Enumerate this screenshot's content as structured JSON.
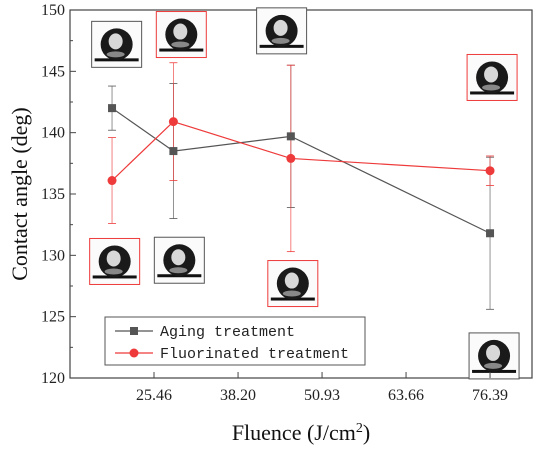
{
  "chart_data": {
    "type": "line",
    "xlabel": "Fluence (J/cm",
    "xlabel_sup": "2",
    "xlabel_end": ")",
    "ylabel": "Contact angle (deg)",
    "xlim": [
      12.73,
      82.75
    ],
    "ylim": [
      120,
      150
    ],
    "xticks": [
      25.46,
      38.2,
      50.93,
      63.66,
      76.39
    ],
    "xtick_labels": [
      "25.46",
      "38.20",
      "50.93",
      "63.66",
      "76.39"
    ],
    "yticks": [
      120,
      125,
      130,
      135,
      140,
      145,
      150
    ],
    "ytick_labels": [
      "120",
      "125",
      "130",
      "135",
      "140",
      "145",
      "150"
    ],
    "legend_position": "bottom-left",
    "series": [
      {
        "name": "Aging treatment",
        "color": "#555555",
        "marker": "square",
        "x": [
          19.1,
          28.4,
          46.2,
          76.39
        ],
        "y": [
          142.0,
          138.5,
          139.7,
          131.8
        ],
        "err": [
          1.8,
          5.5,
          5.8,
          6.2
        ]
      },
      {
        "name": "Fluorinated treatment",
        "color": "#ee3a3a",
        "marker": "circle",
        "x": [
          19.1,
          28.4,
          46.2,
          76.39
        ],
        "y": [
          136.1,
          140.9,
          137.9,
          136.9
        ],
        "err": [
          3.5,
          4.8,
          7.6,
          1.2
        ]
      }
    ],
    "droplets": [
      {
        "x": 19.8,
        "y": 147.2,
        "frame": "#555555"
      },
      {
        "x": 29.6,
        "y": 148.0,
        "frame": "#ee3a3a"
      },
      {
        "x": 44.8,
        "y": 148.3,
        "frame": "#555555"
      },
      {
        "x": 76.7,
        "y": 144.5,
        "frame": "#ee3a3a"
      },
      {
        "x": 19.5,
        "y": 129.5,
        "frame": "#ee3a3a"
      },
      {
        "x": 29.3,
        "y": 129.6,
        "frame": "#555555"
      },
      {
        "x": 46.5,
        "y": 127.7,
        "frame": "#ee3a3a"
      },
      {
        "x": 77.0,
        "y": 121.8,
        "frame": "#555555"
      }
    ]
  }
}
